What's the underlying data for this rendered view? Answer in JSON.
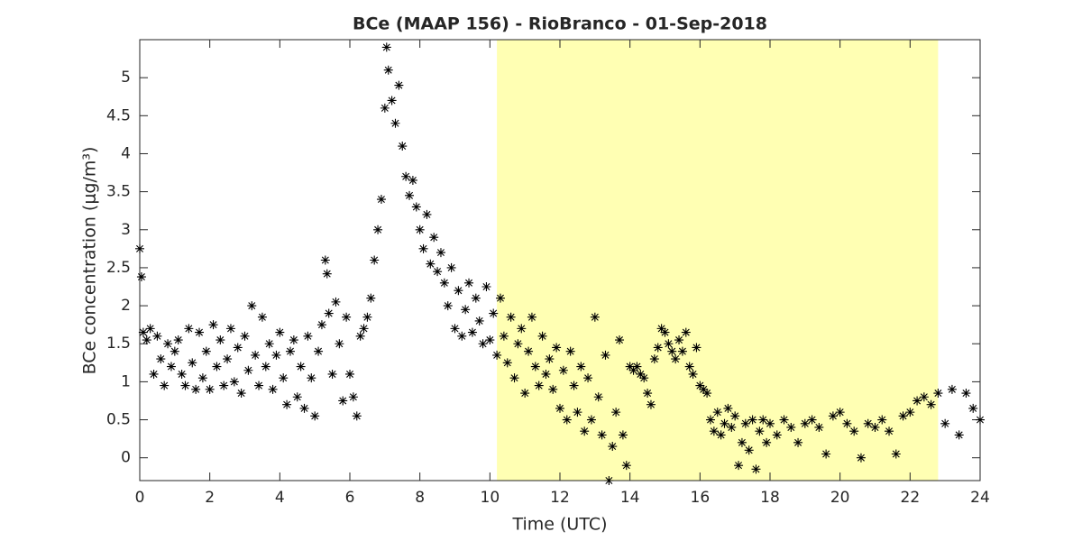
{
  "chart_data": {
    "type": "scatter",
    "title": "BCe (MAAP 156) - RioBranco - 01-Sep-2018",
    "x_label": "Time (UTC)",
    "y_label": "BCe concentration (μg/m³)",
    "xlim": [
      0,
      24
    ],
    "xticks": [
      0,
      2,
      4,
      6,
      8,
      10,
      12,
      14,
      16,
      18,
      20,
      22,
      24
    ],
    "ylim": [
      -0.3,
      5.5
    ],
    "yticks": [
      0,
      0.5,
      1,
      1.5,
      2,
      2.5,
      3,
      3.5,
      4,
      4.5,
      5
    ],
    "highlight": {
      "xmin": 10.2,
      "xmax": 22.8,
      "color": "#ffffb3"
    },
    "marker": "asterisk",
    "color": "#000000",
    "x": [
      0,
      0.05,
      0.1,
      0.2,
      0.3,
      0.4,
      0.5,
      0.6,
      0.7,
      0.8,
      0.9,
      1.0,
      1.1,
      1.2,
      1.3,
      1.4,
      1.5,
      1.6,
      1.7,
      1.8,
      1.9,
      2.0,
      2.1,
      2.2,
      2.3,
      2.4,
      2.5,
      2.6,
      2.7,
      2.8,
      2.9,
      3.0,
      3.1,
      3.2,
      3.3,
      3.4,
      3.5,
      3.6,
      3.7,
      3.8,
      3.9,
      4.0,
      4.1,
      4.2,
      4.3,
      4.4,
      4.5,
      4.6,
      4.7,
      4.8,
      4.9,
      5.0,
      5.1,
      5.2,
      5.3,
      5.35,
      5.4,
      5.5,
      5.6,
      5.7,
      5.8,
      5.9,
      6.0,
      6.1,
      6.2,
      6.3,
      6.4,
      6.5,
      6.6,
      6.7,
      6.8,
      6.9,
      7.0,
      7.05,
      7.1,
      7.2,
      7.3,
      7.4,
      7.5,
      7.6,
      7.7,
      7.8,
      7.9,
      8.0,
      8.1,
      8.2,
      8.3,
      8.4,
      8.5,
      8.6,
      8.7,
      8.8,
      8.9,
      9.0,
      9.1,
      9.2,
      9.3,
      9.4,
      9.5,
      9.6,
      9.7,
      9.8,
      9.9,
      10.0,
      10.1,
      10.2,
      10.3,
      10.4,
      10.5,
      10.6,
      10.7,
      10.8,
      10.9,
      11.0,
      11.1,
      11.2,
      11.3,
      11.4,
      11.5,
      11.6,
      11.7,
      11.8,
      11.9,
      12.0,
      12.1,
      12.2,
      12.3,
      12.4,
      12.5,
      12.6,
      12.7,
      12.8,
      12.9,
      13.0,
      13.1,
      13.2,
      13.3,
      13.4,
      13.5,
      13.6,
      13.7,
      13.8,
      13.9,
      14.0,
      14.1,
      14.2,
      14.3,
      14.4,
      14.5,
      14.6,
      14.7,
      14.8,
      14.9,
      15.0,
      15.1,
      15.2,
      15.3,
      15.4,
      15.5,
      15.6,
      15.7,
      15.8,
      15.9,
      16.0,
      16.1,
      16.2,
      16.3,
      16.4,
      16.5,
      16.6,
      16.7,
      16.8,
      16.9,
      17.0,
      17.1,
      17.2,
      17.3,
      17.4,
      17.5,
      17.6,
      17.7,
      17.8,
      17.9,
      18.0,
      18.2,
      18.4,
      18.6,
      18.8,
      19.0,
      19.2,
      19.4,
      19.6,
      19.8,
      20.0,
      20.2,
      20.4,
      20.6,
      20.8,
      21.0,
      21.2,
      21.4,
      21.6,
      21.8,
      22.0,
      22.2,
      22.4,
      22.6,
      22.8,
      23.0,
      23.2,
      23.4,
      23.6,
      23.8,
      24.0
    ],
    "values": [
      2.75,
      2.38,
      1.65,
      1.55,
      1.7,
      1.1,
      1.6,
      1.3,
      0.95,
      1.5,
      1.2,
      1.4,
      1.55,
      1.1,
      0.95,
      1.7,
      1.25,
      0.9,
      1.65,
      1.05,
      1.4,
      0.9,
      1.75,
      1.2,
      1.55,
      0.95,
      1.3,
      1.7,
      1.0,
      1.45,
      0.85,
      1.6,
      1.15,
      2.0,
      1.35,
      0.95,
      1.85,
      1.2,
      1.5,
      0.9,
      1.35,
      1.65,
      1.05,
      0.7,
      1.4,
      1.55,
      0.8,
      1.2,
      0.65,
      1.6,
      1.05,
      0.55,
      1.4,
      1.75,
      2.6,
      2.42,
      1.9,
      1.1,
      2.05,
      1.5,
      0.75,
      1.85,
      1.1,
      0.8,
      0.55,
      1.6,
      1.7,
      1.85,
      2.1,
      2.6,
      3.0,
      3.4,
      4.6,
      5.4,
      5.1,
      4.7,
      4.4,
      4.9,
      4.1,
      3.7,
      3.45,
      3.65,
      3.3,
      3.0,
      2.75,
      3.2,
      2.55,
      2.9,
      2.45,
      2.7,
      2.3,
      2.0,
      2.5,
      1.7,
      2.2,
      1.6,
      1.95,
      2.3,
      1.65,
      2.1,
      1.8,
      1.5,
      2.25,
      1.55,
      1.9,
      1.35,
      2.1,
      1.6,
      1.25,
      1.85,
      1.05,
      1.5,
      1.7,
      0.85,
      1.4,
      1.85,
      1.2,
      0.95,
      1.6,
      1.1,
      1.3,
      0.9,
      1.45,
      0.65,
      1.15,
      0.5,
      1.4,
      0.95,
      0.6,
      1.2,
      0.35,
      1.05,
      0.5,
      1.85,
      0.8,
      0.3,
      1.35,
      -0.3,
      0.15,
      0.6,
      1.55,
      0.3,
      -0.1,
      1.2,
      1.15,
      1.2,
      1.1,
      1.05,
      0.85,
      0.7,
      1.3,
      1.45,
      1.7,
      1.65,
      1.5,
      1.4,
      1.3,
      1.55,
      1.4,
      1.65,
      1.2,
      1.1,
      1.45,
      0.95,
      0.9,
      0.85,
      0.5,
      0.35,
      0.6,
      0.3,
      0.45,
      0.65,
      0.4,
      0.55,
      -0.1,
      0.2,
      0.45,
      0.1,
      0.5,
      -0.15,
      0.35,
      0.5,
      0.2,
      0.45,
      0.3,
      0.5,
      0.4,
      0.2,
      0.45,
      0.5,
      0.4,
      0.05,
      0.55,
      0.6,
      0.45,
      0.35,
      0.0,
      0.45,
      0.4,
      0.5,
      0.35,
      0.05,
      0.55,
      0.6,
      0.75,
      0.8,
      0.7,
      0.85,
      0.45,
      0.9,
      0.3,
      0.85,
      0.65,
      0.5
    ]
  }
}
